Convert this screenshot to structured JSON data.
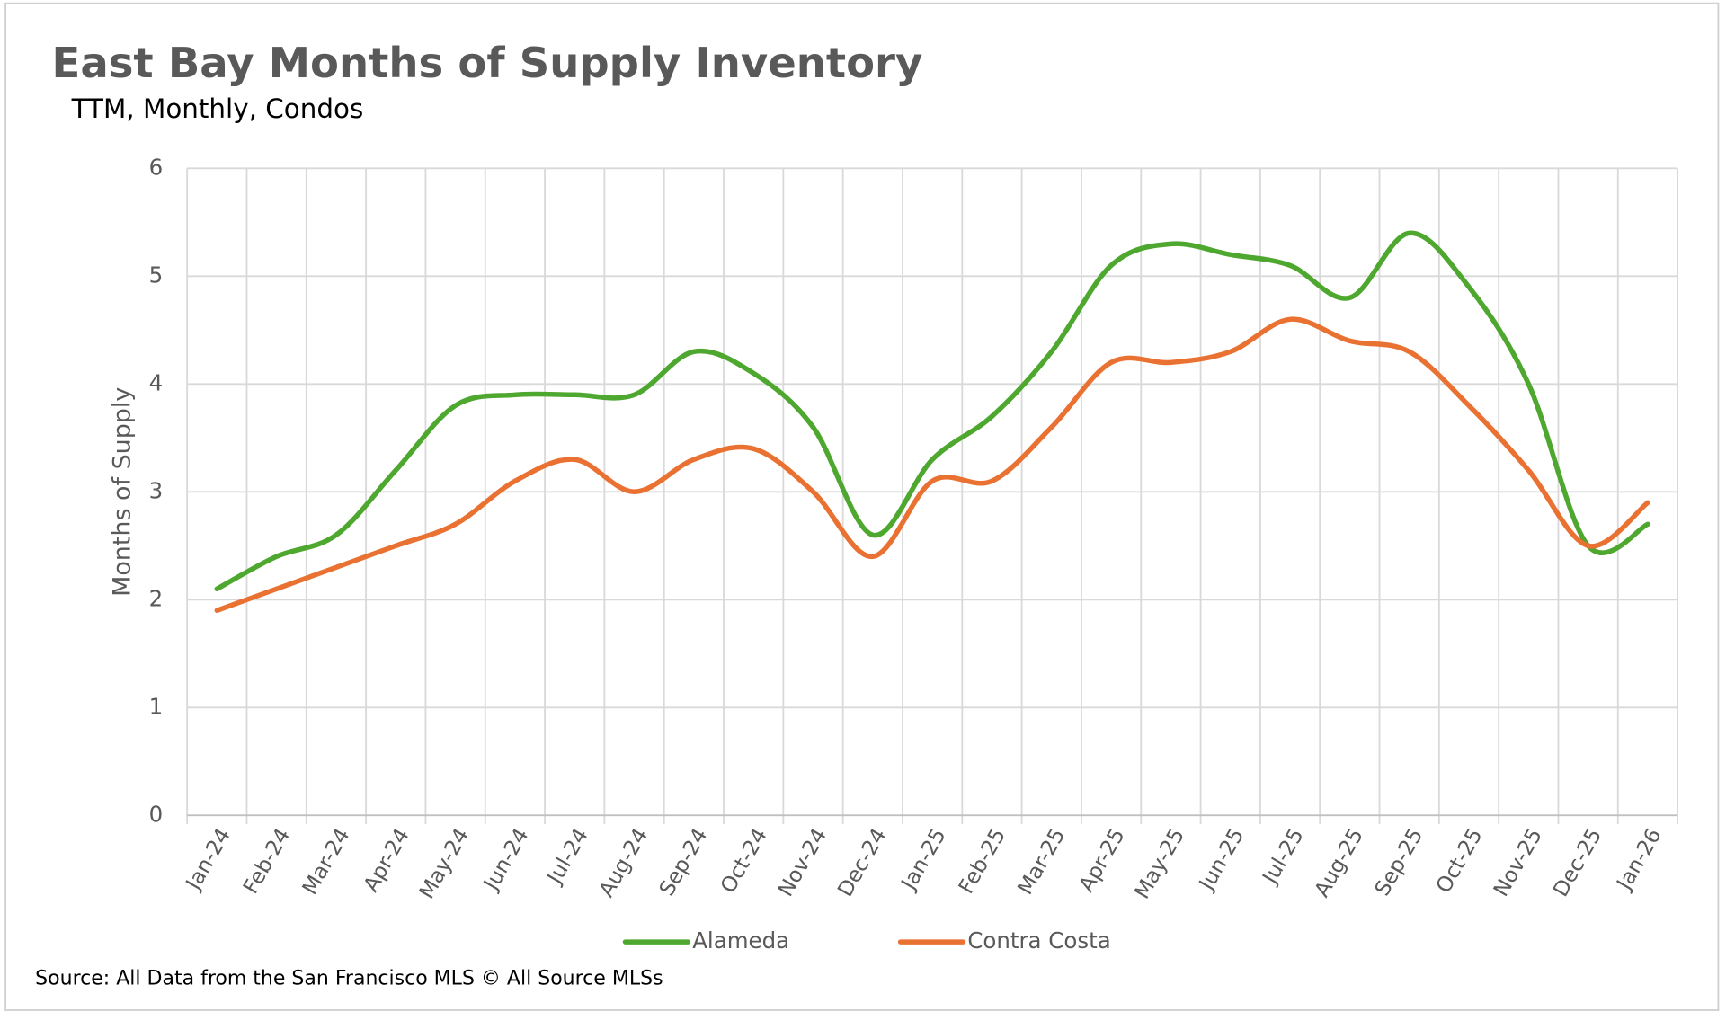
{
  "chart_data": {
    "type": "line",
    "title": "East Bay Months of Supply Inventory",
    "subtitle": "TTM, Monthly, Condos",
    "y_label": "Months of Supply",
    "source": "Source: All Data from the San Francisco MLS © All Source MLSs",
    "categories": [
      "Jan-24",
      "Feb-24",
      "Mar-24",
      "Apr-24",
      "May-24",
      "Jun-24",
      "Jul-24",
      "Aug-24",
      "Sep-24",
      "Oct-24",
      "Nov-24",
      "Dec-24",
      "Jan-25",
      "Feb-25",
      "Mar-25",
      "Apr-25",
      "May-25",
      "Jun-25",
      "Jul-25",
      "Aug-25",
      "Sep-25",
      "Oct-25",
      "Nov-25",
      "Dec-25",
      "Jan-26"
    ],
    "series": [
      {
        "name": "Alameda",
        "color": "#4ea72e",
        "values": [
          2.1,
          2.4,
          2.6,
          3.2,
          3.8,
          3.9,
          3.9,
          3.9,
          4.3,
          4.1,
          3.6,
          2.6,
          3.3,
          3.7,
          4.3,
          5.1,
          5.3,
          5.2,
          5.1,
          4.8,
          5.4,
          4.9,
          4.0,
          2.5,
          2.7
        ]
      },
      {
        "name": "Contra Costa",
        "color": "#e97132",
        "values": [
          1.9,
          2.1,
          2.3,
          2.5,
          2.7,
          3.1,
          3.3,
          3.0,
          3.3,
          3.4,
          3.0,
          2.4,
          3.1,
          3.1,
          3.6,
          4.2,
          4.2,
          4.3,
          4.6,
          4.4,
          4.3,
          3.8,
          3.2,
          2.5,
          2.9
        ]
      }
    ],
    "ylim": [
      0,
      6
    ],
    "yticks": [
      0,
      1,
      2,
      3,
      4,
      5,
      6
    ],
    "grid": true,
    "legend": "bottom",
    "smooth": true
  }
}
